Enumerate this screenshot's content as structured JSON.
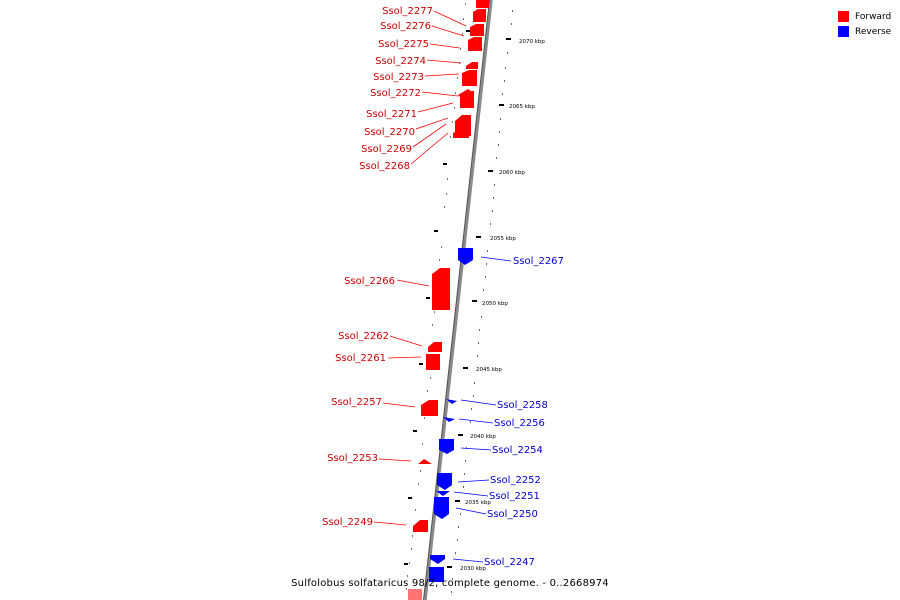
{
  "legend": {
    "forward_label": "Forward",
    "reverse_label": "Reverse",
    "forward_color": "#ff0000",
    "reverse_color": "#0000ff"
  },
  "caption": "Sulfolobus solfataricus 98/2, complete genome. - 0..2668974",
  "kbp_ticks": [
    "2070 kbp",
    "2065 kbp",
    "2060 kbp",
    "2055 kbp",
    "2050 kbp",
    "2045 kbp",
    "2040 kbp",
    "2035 kbp",
    "2030 kbp"
  ],
  "forward_genes": [
    "Ssol_2277",
    "Ssol_2276",
    "Ssol_2275",
    "Ssol_2274",
    "Ssol_2273",
    "Ssol_2272",
    "Ssol_2271",
    "Ssol_2270",
    "Ssol_2269",
    "Ssol_2268",
    "Ssol_2266",
    "Ssol_2262",
    "Ssol_2261",
    "Ssol_2257",
    "Ssol_2253",
    "Ssol_2249"
  ],
  "reverse_genes": [
    "Ssol_2267",
    "Ssol_2258",
    "Ssol_2256",
    "Ssol_2254",
    "Ssol_2252",
    "Ssol_2251",
    "Ssol_2250",
    "Ssol_2247"
  ]
}
